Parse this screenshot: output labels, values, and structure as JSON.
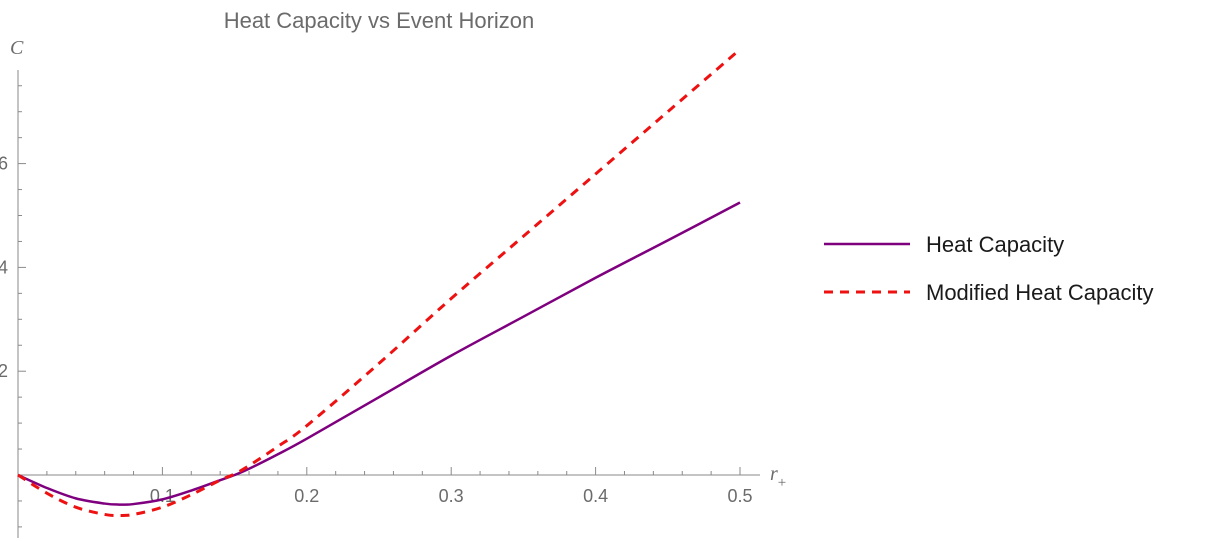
{
  "chart_data": {
    "type": "line",
    "title": "Heat Capacity vs Event Horizon",
    "xlabel": "r",
    "xlabel_subscript": "+",
    "ylabel": "C",
    "xlim": [
      0,
      0.5
    ],
    "ylim": [
      -1.2,
      8.2
    ],
    "xticks": [
      0.1,
      0.2,
      0.3,
      0.4,
      0.5
    ],
    "xtick_labels": [
      "0.1",
      "0.2",
      "0.3",
      "0.4",
      "0.5"
    ],
    "yticks": [
      2,
      4,
      6
    ],
    "ytick_labels": [
      "2",
      "4",
      "6"
    ],
    "grid": false,
    "legend_position": "right",
    "series": [
      {
        "name": "Heat Capacity",
        "color": "#7f007f",
        "style": "solid",
        "x": [
          0,
          0.02,
          0.04,
          0.06,
          0.07,
          0.08,
          0.1,
          0.12,
          0.14,
          0.15,
          0.16,
          0.18,
          0.2,
          0.25,
          0.3,
          0.35,
          0.4,
          0.45,
          0.5
        ],
        "y": [
          0,
          -0.25,
          -0.45,
          -0.55,
          -0.57,
          -0.56,
          -0.47,
          -0.3,
          -0.1,
          0.0,
          0.12,
          0.4,
          0.7,
          1.5,
          2.3,
          3.05,
          3.8,
          4.52,
          5.25
        ]
      },
      {
        "name": "Modified Heat Capacity",
        "color": "#ee1111",
        "style": "dashed",
        "x": [
          0,
          0.02,
          0.04,
          0.06,
          0.07,
          0.08,
          0.1,
          0.12,
          0.14,
          0.15,
          0.16,
          0.18,
          0.2,
          0.25,
          0.3,
          0.35,
          0.4,
          0.45,
          0.5
        ],
        "y": [
          0,
          -0.35,
          -0.62,
          -0.76,
          -0.78,
          -0.76,
          -0.62,
          -0.38,
          -0.1,
          0.02,
          0.18,
          0.55,
          0.95,
          2.15,
          3.4,
          4.6,
          5.8,
          7.0,
          8.2
        ]
      }
    ]
  }
}
